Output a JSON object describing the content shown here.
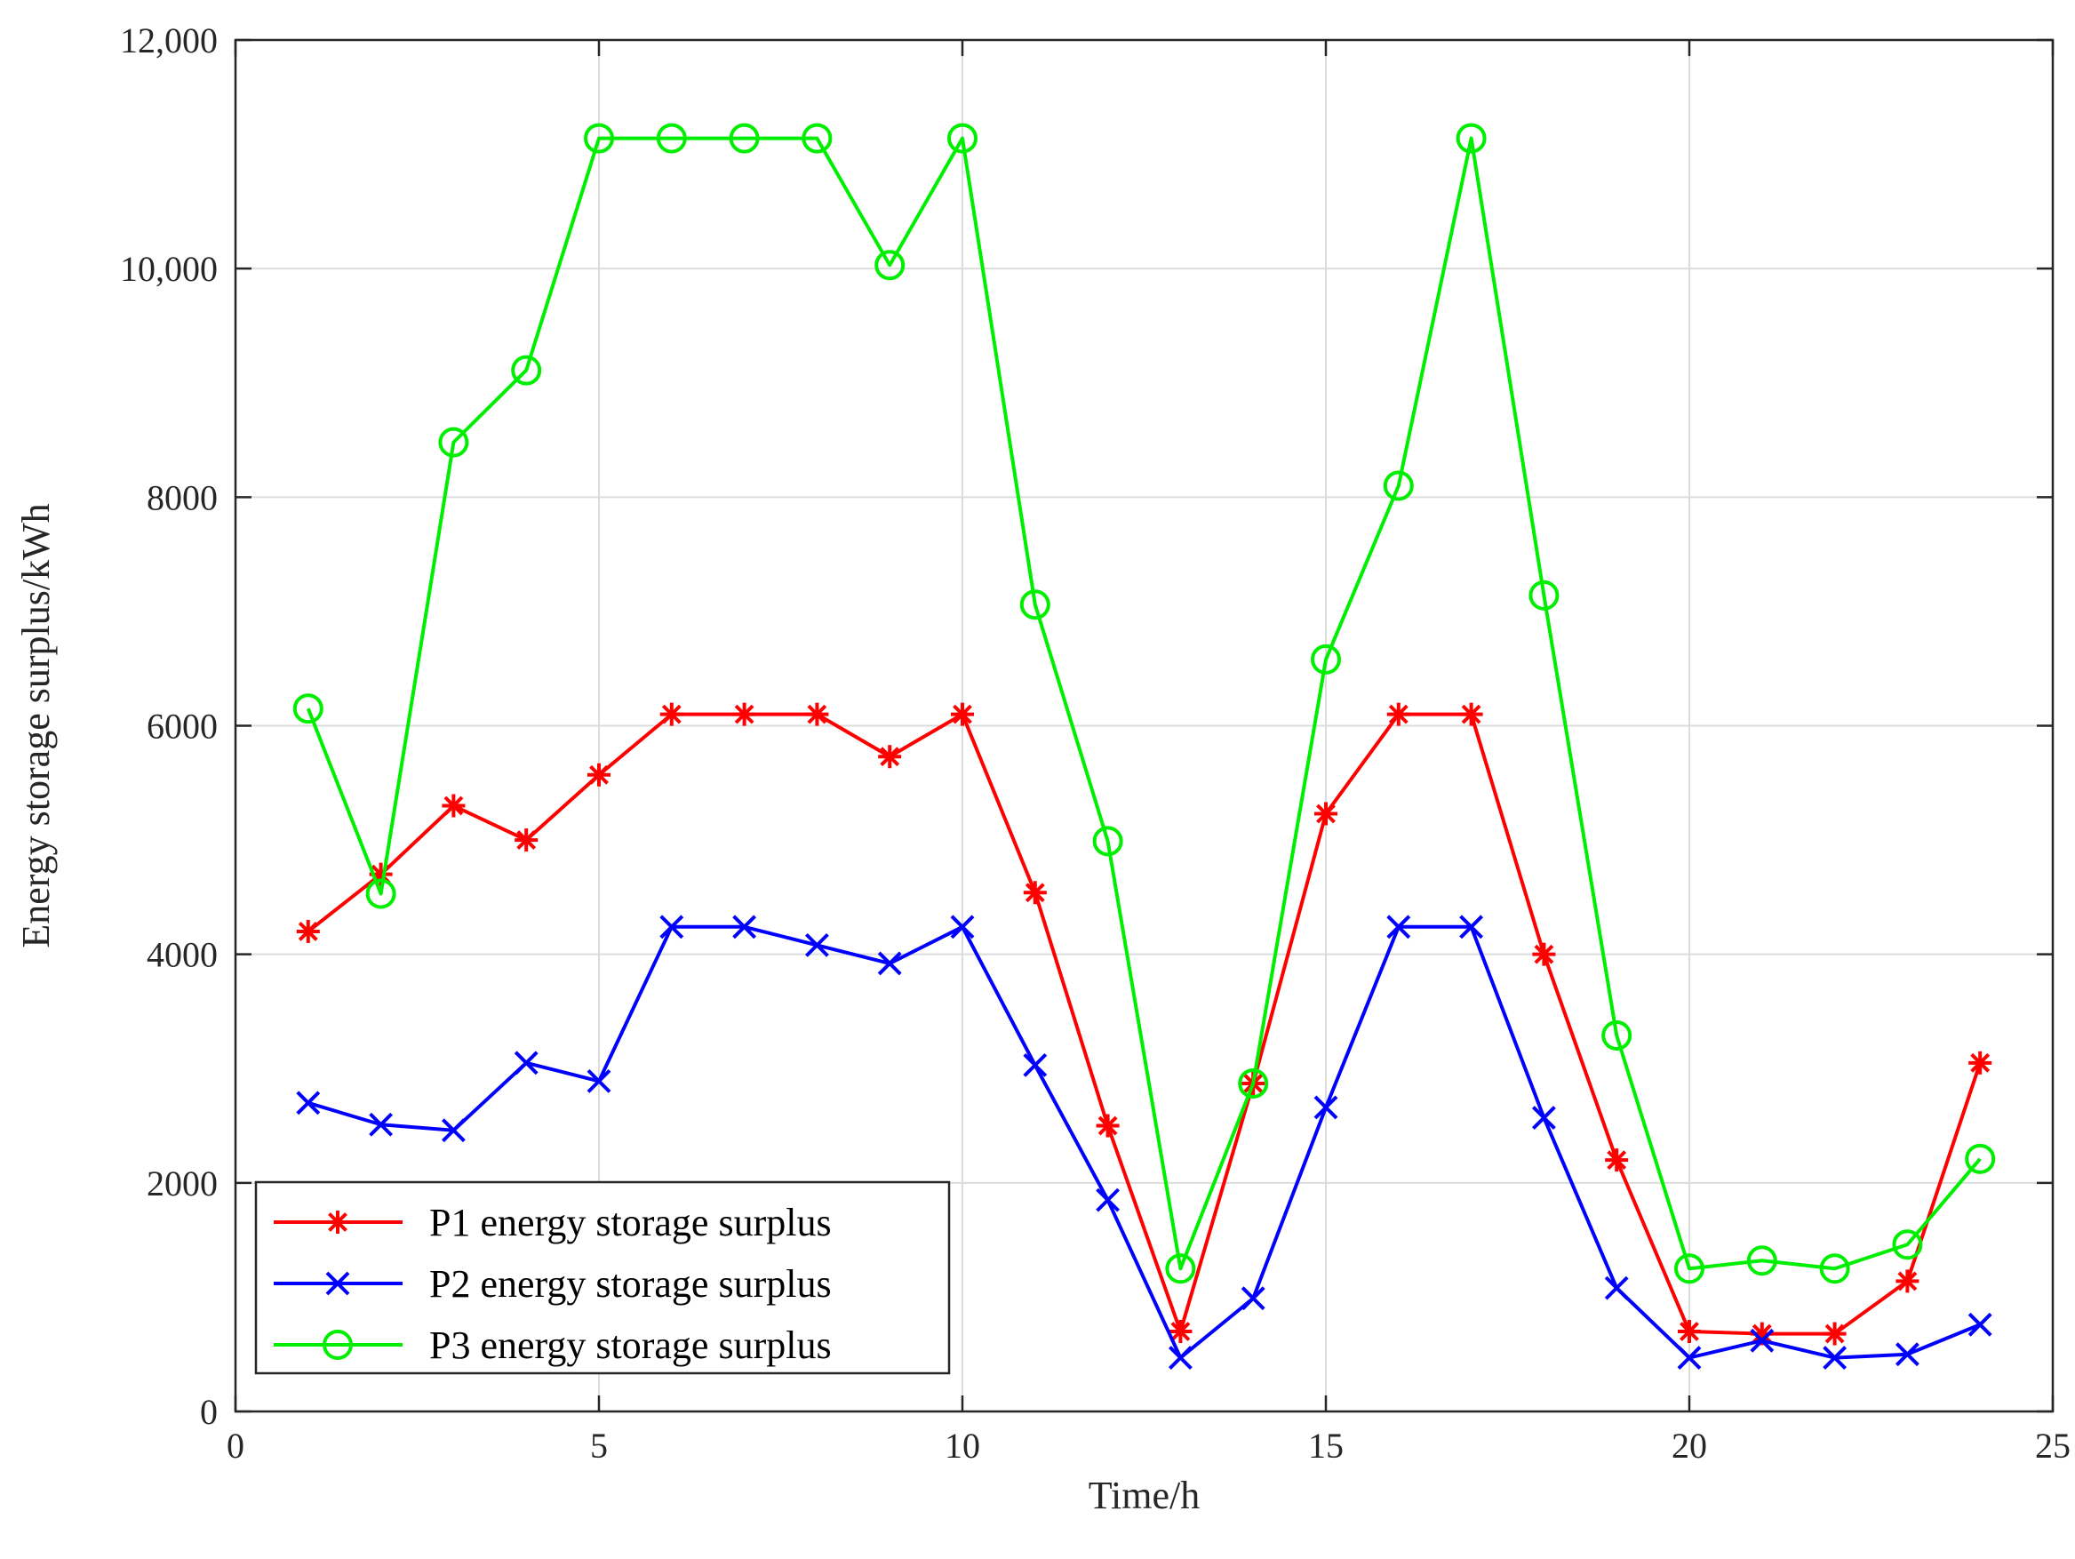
{
  "chart_data": {
    "type": "line",
    "title": "",
    "xlabel": "Time/h",
    "ylabel": "Energy storage surplus/kWh",
    "xlim": [
      0,
      25
    ],
    "ylim": [
      0,
      12000
    ],
    "grid": true,
    "legend_position": "bottom-left",
    "x_ticks": [
      0,
      5,
      10,
      15,
      20,
      25
    ],
    "x_tick_labels": [
      "0",
      "5",
      "10",
      "15",
      "20",
      "25"
    ],
    "y_ticks": [
      0,
      2000,
      4000,
      6000,
      8000,
      10000,
      12000
    ],
    "y_tick_labels": [
      "0",
      "2000",
      "4000",
      "6000",
      "8000",
      "10,000",
      "12,000"
    ],
    "x": [
      1,
      2,
      3,
      4,
      5,
      6,
      7,
      8,
      9,
      10,
      11,
      12,
      13,
      14,
      15,
      16,
      17,
      18,
      19,
      20,
      21,
      22,
      23,
      24
    ],
    "series": [
      {
        "name": "P1 energy storage surplus",
        "color": "#ff0000",
        "marker": "asterisk",
        "values": [
          4200,
          4700,
          5300,
          5000,
          5570,
          6100,
          6100,
          6100,
          5730,
          6100,
          4540,
          2500,
          700,
          2870,
          5230,
          6100,
          6100,
          4000,
          2200,
          700,
          680,
          680,
          1140,
          3050
        ]
      },
      {
        "name": "P2 energy storage surplus",
        "color": "#0000ff",
        "marker": "x",
        "values": [
          2700,
          2510,
          2460,
          3050,
          2890,
          4240,
          4240,
          4080,
          3920,
          4240,
          3030,
          1850,
          470,
          990,
          2660,
          4240,
          4240,
          2570,
          1080,
          470,
          620,
          470,
          500,
          760
        ]
      },
      {
        "name": "P3 energy storage surplus",
        "color": "#00ee00",
        "marker": "circle",
        "values": [
          6150,
          4530,
          8480,
          9110,
          11140,
          11140,
          11140,
          11140,
          10030,
          11140,
          7060,
          4990,
          1250,
          2870,
          6580,
          8100,
          11140,
          7140,
          3290,
          1250,
          1320,
          1250,
          1460,
          2210
        ]
      }
    ]
  }
}
